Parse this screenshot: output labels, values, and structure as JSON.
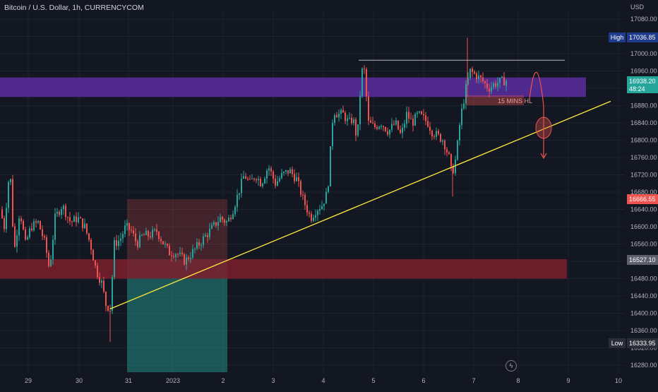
{
  "title": "Bitcoin / U.S. Dollar, 1h, CURRENCYCOM",
  "colors": {
    "background": "#131722",
    "grid": "#1e222d",
    "up": "#26a69a",
    "down": "#ef5350",
    "trendline": "#ffeb3b",
    "resistance_zone": "#5b2d9e",
    "support_zone": "#7d1f2c",
    "high_tag": "#1e3a8a",
    "current_tag": "#26a69a",
    "red_tag": "#ef5350"
  },
  "axis": {
    "currency": "USD",
    "y_ticks": [
      "17080.00",
      "17040.00",
      "17000.00",
      "16960.00",
      "16920.00",
      "16880.00",
      "16840.00",
      "16800.00",
      "16760.00",
      "16720.00",
      "16680.00",
      "16640.00",
      "16600.00",
      "16560.00",
      "16520.00",
      "16480.00",
      "16440.00",
      "16400.00",
      "16360.00",
      "16320.00",
      "16280.00"
    ],
    "x_ticks": [
      "29",
      "30",
      "31",
      "2023",
      "2",
      "3",
      "4",
      "5",
      "6",
      "7",
      "8",
      "9",
      "10"
    ]
  },
  "price_tags": {
    "high_label": "High",
    "high_value": "17036.85",
    "current_value": "16938.20",
    "countdown": "48:24",
    "red_value": "16666.55",
    "support_value": "16527.10",
    "low_label": "Low",
    "low_value": "16333.95"
  },
  "annotation": "15 MINS HL",
  "footer_icon": "lightning-icon",
  "chart_data": {
    "type": "candlestick",
    "title": "Bitcoin / U.S. Dollar, 1h, CURRENCYCOM",
    "ylabel": "USD",
    "ylim": [
      16260,
      17100
    ],
    "x_categories": [
      "29",
      "30",
      "31",
      "2023",
      "2",
      "3",
      "4",
      "5",
      "6",
      "7",
      "8",
      "9",
      "10"
    ],
    "close_path": [
      [
        0,
        16640
      ],
      [
        6,
        16600
      ],
      [
        14,
        16740
      ],
      [
        20,
        16540
      ],
      [
        28,
        16640
      ],
      [
        36,
        16560
      ],
      [
        44,
        16600
      ],
      [
        54,
        16610
      ],
      [
        64,
        16560
      ],
      [
        70,
        16500
      ],
      [
        78,
        16620
      ],
      [
        88,
        16650
      ],
      [
        100,
        16610
      ],
      [
        110,
        16620
      ],
      [
        120,
        16600
      ],
      [
        128,
        16560
      ],
      [
        136,
        16500
      ],
      [
        144,
        16470
      ],
      [
        150,
        16420
      ],
      [
        156,
        16410
      ],
      [
        162,
        16560
      ],
      [
        170,
        16570
      ],
      [
        178,
        16600
      ],
      [
        186,
        16590
      ],
      [
        194,
        16560
      ],
      [
        202,
        16580
      ],
      [
        212,
        16580
      ],
      [
        222,
        16590
      ],
      [
        232,
        16560
      ],
      [
        240,
        16540
      ],
      [
        250,
        16540
      ],
      [
        262,
        16520
      ],
      [
        272,
        16540
      ],
      [
        282,
        16560
      ],
      [
        292,
        16580
      ],
      [
        302,
        16600
      ],
      [
        312,
        16620
      ],
      [
        322,
        16610
      ],
      [
        330,
        16640
      ],
      [
        338,
        16680
      ],
      [
        346,
        16720
      ],
      [
        354,
        16700
      ],
      [
        362,
        16720
      ],
      [
        370,
        16700
      ],
      [
        380,
        16740
      ],
      [
        390,
        16700
      ],
      [
        400,
        16720
      ],
      [
        410,
        16730
      ],
      [
        420,
        16710
      ],
      [
        430,
        16660
      ],
      [
        440,
        16620
      ],
      [
        448,
        16640
      ],
      [
        456,
        16650
      ],
      [
        464,
        16680
      ],
      [
        472,
        16870
      ],
      [
        478,
        16860
      ],
      [
        486,
        16860
      ],
      [
        494,
        16840
      ],
      [
        500,
        16850
      ],
      [
        506,
        16800
      ],
      [
        512,
        16960
      ],
      [
        516,
        16960
      ],
      [
        522,
        16840
      ],
      [
        530,
        16830
      ],
      [
        540,
        16840
      ],
      [
        550,
        16820
      ],
      [
        560,
        16840
      ],
      [
        568,
        16810
      ],
      [
        576,
        16860
      ],
      [
        584,
        16840
      ],
      [
        592,
        16860
      ],
      [
        600,
        16850
      ],
      [
        606,
        16840
      ],
      [
        612,
        16820
      ],
      [
        620,
        16810
      ],
      [
        628,
        16800
      ],
      [
        636,
        16760
      ],
      [
        640,
        16720
      ],
      [
        646,
        16760
      ],
      [
        652,
        16850
      ],
      [
        660,
        16920
      ],
      [
        666,
        16960
      ],
      [
        674,
        16950
      ],
      [
        682,
        16940
      ],
      [
        692,
        16920
      ],
      [
        700,
        16930
      ],
      [
        708,
        16935
      ],
      [
        716,
        16938
      ]
    ],
    "zones": [
      {
        "name": "resistance",
        "low": 16900,
        "high": 16945,
        "color": "#5b2d9e"
      },
      {
        "name": "support",
        "low": 16480,
        "high": 16525,
        "color": "#7d1f2c"
      }
    ],
    "trendline": [
      [
        156,
        16410
      ],
      [
        865,
        16890
      ]
    ],
    "horizontal_level": 16985,
    "high": 17036.85,
    "low": 16333.95,
    "last": 16938.2
  }
}
